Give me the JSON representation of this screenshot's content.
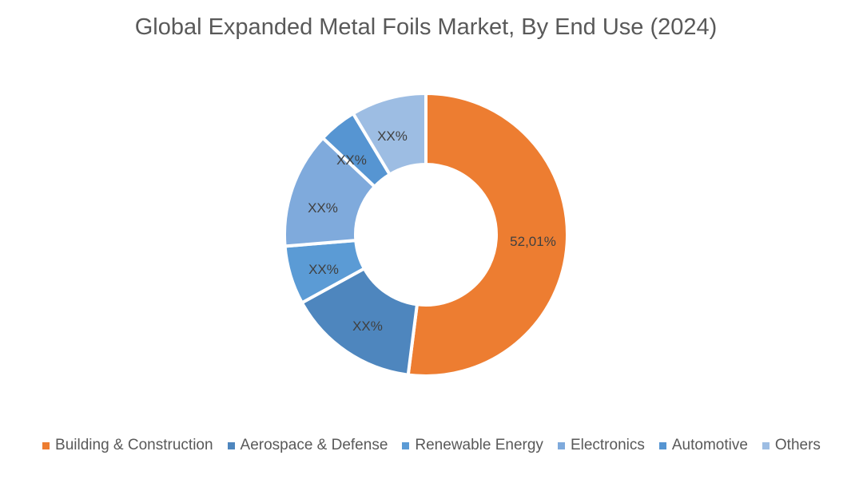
{
  "chart_data": {
    "type": "pie",
    "subtype": "donut",
    "title": "Global Expanded Metal Foils Market, By End Use (2024)",
    "categories": [
      "Building & Construction",
      "Aerospace & Defense",
      "Renewable Energy",
      "Electronics",
      "Automotive",
      "Others"
    ],
    "values": [
      52.01,
      15.0,
      6.7,
      13.3,
      4.4,
      8.6
    ],
    "data_labels": [
      "52,01%",
      "XX%",
      "XX%",
      "XX%",
      "XX%",
      "XX%"
    ],
    "colors": [
      "#ED7D31",
      "#4E86BE",
      "#5B9BD5",
      "#7FAADC",
      "#5695D2",
      "#9DBDE3"
    ],
    "legend_position": "bottom",
    "start_angle_deg": 0,
    "direction": "clockwise"
  },
  "title": "Global Expanded Metal Foils Market, By End Use (2024)",
  "legend": {
    "items": [
      {
        "label": "Building & Construction",
        "color": "#ED7D31"
      },
      {
        "label": "Aerospace & Defense",
        "color": "#4E86BE"
      },
      {
        "label": "Renewable Energy",
        "color": "#5B9BD5"
      },
      {
        "label": "Electronics",
        "color": "#7FAADC"
      },
      {
        "label": "Automotive",
        "color": "#5695D2"
      },
      {
        "label": "Others",
        "color": "#9DBDE3"
      }
    ]
  },
  "labels": {
    "building": "52,01%",
    "aerospace": "XX%",
    "renewable": "XX%",
    "electronics": "XX%",
    "automotive": "XX%",
    "others": "XX%"
  }
}
